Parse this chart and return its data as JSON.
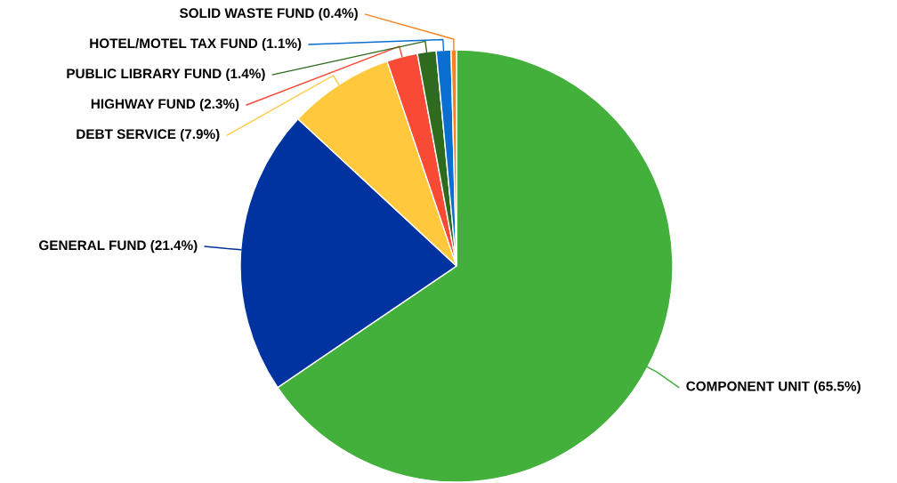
{
  "chart_data": {
    "type": "pie",
    "categories": [
      "COMPONENT UNIT (65.5%)",
      "GENERAL FUND (21.4%)",
      "DEBT SERVICE (7.9%)",
      "HIGHWAY FUND (2.3%)",
      "PUBLIC LIBRARY FUND (1.4%)",
      "HOTEL/MOTEL TAX FUND (1.1%)",
      "SOLID WASTE FUND (0.4%)"
    ],
    "values": [
      65.5,
      21.4,
      7.9,
      2.3,
      1.4,
      1.1,
      0.4
    ],
    "colors": [
      "#43b03b",
      "#0033a0",
      "#ffc83d",
      "#f94a36",
      "#2e6b1e",
      "#0a6fd1",
      "#f7821f"
    ]
  }
}
